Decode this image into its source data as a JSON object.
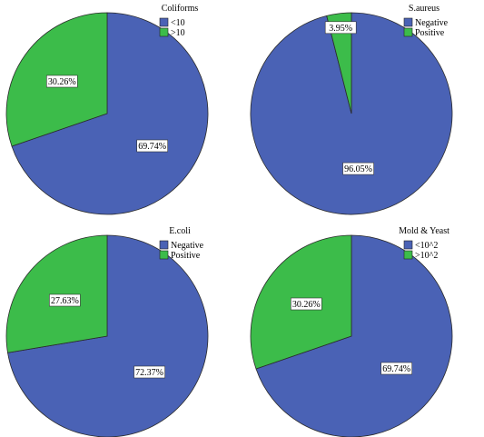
{
  "chart_data": [
    {
      "type": "pie",
      "legend_title": "Coliforms",
      "slices": [
        {
          "label": "<10",
          "value": 69.74,
          "display": "69.74%",
          "color": "#4a62b5"
        },
        {
          "label": ">10",
          "value": 30.26,
          "display": "30.26%",
          "color": "#3cbc4a"
        }
      ],
      "legend_position": "top-right"
    },
    {
      "type": "pie",
      "legend_title": "S.aureus",
      "slices": [
        {
          "label": "Negative",
          "value": 96.05,
          "display": "96.05%",
          "color": "#4a62b5"
        },
        {
          "label": "Positive",
          "value": 3.95,
          "display": "3.95%",
          "color": "#3cbc4a"
        }
      ],
      "legend_position": "top-right"
    },
    {
      "type": "pie",
      "legend_title": "E.coli",
      "slices": [
        {
          "label": "Negative",
          "value": 72.37,
          "display": "72.37%",
          "color": "#4a62b5"
        },
        {
          "label": "Positive",
          "value": 27.63,
          "display": "27.63%",
          "color": "#3cbc4a"
        }
      ],
      "legend_position": "top-right"
    },
    {
      "type": "pie",
      "legend_title": "Mold & Yeast",
      "slices": [
        {
          "label": "<10^2",
          "value": 69.74,
          "display": "69.74%",
          "color": "#4a62b5"
        },
        {
          "label": ">10^2",
          "value": 30.26,
          "display": "30.26%",
          "color": "#3cbc4a"
        }
      ],
      "legend_position": "top-right"
    }
  ]
}
